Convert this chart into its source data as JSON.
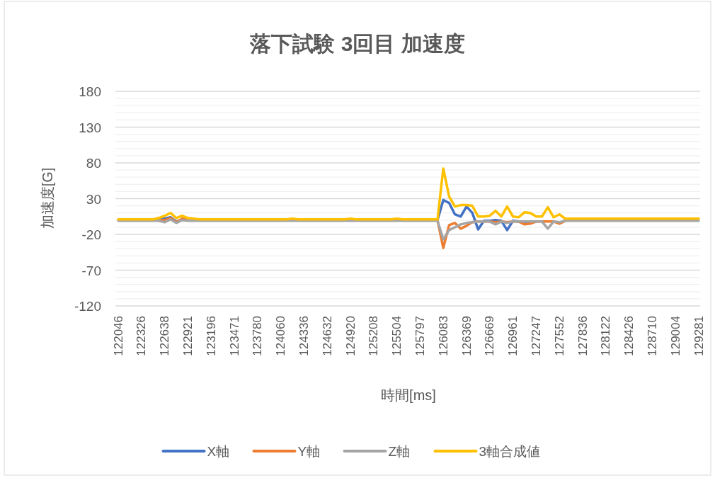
{
  "chart_data": {
    "type": "line",
    "title": "落下試験 3回目 加速度",
    "xlabel": "時間[ms]",
    "ylabel": "加速度[G]",
    "categories": [
      "122046",
      null,
      null,
      null,
      "122326",
      null,
      null,
      null,
      "122638",
      null,
      null,
      null,
      "122921",
      null,
      null,
      null,
      "123196",
      null,
      null,
      null,
      "123471",
      null,
      null,
      null,
      "123780",
      null,
      null,
      null,
      "124060",
      null,
      null,
      null,
      "124336",
      null,
      null,
      null,
      "124632",
      null,
      null,
      null,
      "124920",
      null,
      null,
      null,
      "125208",
      null,
      null,
      null,
      "125504",
      null,
      null,
      null,
      "125797",
      null,
      null,
      null,
      "126083",
      null,
      null,
      null,
      "126369",
      null,
      null,
      null,
      "126669",
      null,
      null,
      null,
      "126961",
      null,
      null,
      null,
      "127247",
      null,
      null,
      null,
      "127552",
      null,
      null,
      null,
      "127836",
      null,
      null,
      null,
      "128122",
      null,
      null,
      null,
      "128426",
      null,
      null,
      null,
      "128710",
      null,
      null,
      null,
      "129004",
      null,
      null,
      null,
      "129281"
    ],
    "ylim": [
      -120,
      180
    ],
    "yticks": [
      -120,
      {
        "value": -110,
        "label": null
      },
      {
        "value": -100,
        "label": null
      },
      {
        "value": -90,
        "label": null
      },
      {
        "value": -80,
        "label": null
      },
      -70,
      {
        "value": -60,
        "label": null
      },
      {
        "value": -50,
        "label": null
      },
      {
        "value": -40,
        "label": null
      },
      {
        "value": -30,
        "label": null
      },
      -20,
      {
        "value": -10,
        "label": null
      },
      {
        "value": 0,
        "label": null
      },
      {
        "value": 10,
        "label": null
      },
      {
        "value": 20,
        "label": null
      },
      30,
      {
        "value": 40,
        "label": null
      },
      {
        "value": 50,
        "label": null
      },
      {
        "value": 60,
        "label": null
      },
      {
        "value": 70,
        "label": null
      },
      80,
      {
        "value": 90,
        "label": null
      },
      {
        "value": 100,
        "label": null
      },
      {
        "value": 110,
        "label": null
      },
      {
        "value": 120,
        "label": null
      },
      130,
      {
        "value": 140,
        "label": null
      },
      {
        "value": 150,
        "label": null
      },
      {
        "value": 160,
        "label": null
      },
      {
        "value": 170,
        "label": null
      },
      180
    ],
    "grid": "y",
    "legend": "bottom",
    "series": [
      {
        "name": "X軸",
        "color": "#4472c4",
        "values": [
          null,
          null,
          null,
          null,
          null,
          null,
          null,
          0,
          2,
          4,
          -2,
          0,
          null,
          null,
          null,
          null,
          null,
          null,
          null,
          null,
          null,
          null,
          null,
          null,
          null,
          null,
          null,
          null,
          null,
          null,
          null,
          null,
          null,
          null,
          null,
          null,
          null,
          null,
          null,
          null,
          null,
          null,
          null,
          null,
          null,
          null,
          null,
          null,
          null,
          null,
          null,
          null,
          null,
          null,
          null,
          0,
          28,
          24,
          8,
          5,
          19,
          10,
          -13,
          -1,
          -1,
          0,
          -1,
          -14,
          -1,
          -2,
          -4,
          -2,
          null,
          null,
          null,
          null,
          null,
          null,
          null,
          null,
          null,
          null,
          null,
          null,
          null,
          null,
          null,
          null,
          null,
          null,
          null,
          null,
          null,
          null,
          null,
          null,
          null,
          null,
          null,
          null,
          null
        ]
      },
      {
        "name": "Y軸",
        "color": "#ed7d31",
        "values": [
          null,
          null,
          null,
          null,
          null,
          null,
          null,
          0,
          0,
          3,
          -3,
          2,
          0,
          null,
          null,
          null,
          null,
          null,
          null,
          null,
          null,
          null,
          null,
          null,
          null,
          null,
          null,
          null,
          null,
          null,
          null,
          null,
          null,
          null,
          null,
          null,
          null,
          null,
          null,
          null,
          null,
          null,
          null,
          null,
          null,
          null,
          null,
          null,
          null,
          null,
          null,
          null,
          null,
          null,
          null,
          0,
          -39,
          -7,
          -4,
          -12,
          -8,
          -3,
          -2,
          -2,
          -2,
          -3,
          -2,
          -3,
          -2,
          -2,
          -6,
          -5,
          -2,
          -2,
          -2,
          -2,
          -5,
          -1,
          null,
          null,
          null,
          null,
          null,
          null,
          null,
          null,
          null,
          null,
          null,
          null,
          null,
          null,
          null,
          null,
          null,
          null,
          null,
          null,
          null,
          null,
          null
        ]
      },
      {
        "name": "Z軸",
        "color": "#a5a5a5",
        "values": [
          -1,
          -1,
          -1,
          -1,
          -1,
          -1,
          -1,
          -1,
          -3,
          1,
          -4,
          0,
          -1,
          -1,
          -1,
          -1,
          -1,
          -1,
          -1,
          -1,
          -1,
          -1,
          -1,
          -1,
          -1,
          -1,
          -1,
          -1,
          -1,
          -1,
          -1,
          -1,
          -1,
          -1,
          -1,
          -1,
          -1,
          -1,
          -1,
          -1,
          -1,
          -1,
          -1,
          -1,
          -1,
          -1,
          -1,
          -1,
          -1,
          -1,
          -1,
          -1,
          -1,
          -1,
          -1,
          -1,
          -27,
          -14,
          -10,
          -6,
          -4,
          -3,
          -2,
          -2,
          -2,
          -6,
          -2,
          -4,
          -2,
          -2,
          -2,
          -2,
          -2,
          -2,
          -12,
          -2,
          -3,
          -1,
          -1,
          -1,
          -1,
          -1,
          -1,
          -1,
          -1,
          -1,
          -1,
          -1,
          -1,
          -1,
          -1,
          -1,
          -1,
          -1,
          -1,
          -1,
          -1,
          -1,
          -1,
          -1,
          -1
        ]
      },
      {
        "name": "3軸合成値",
        "color": "#ffc000",
        "values": [
          1,
          1,
          1,
          1,
          1,
          1,
          1,
          3,
          6,
          10,
          3,
          6,
          3,
          2,
          1,
          1,
          1,
          1,
          1,
          1,
          1,
          1,
          1,
          1,
          1,
          1,
          1,
          1,
          1,
          1,
          2,
          1,
          1,
          1,
          1,
          1,
          1,
          1,
          1,
          1,
          2,
          1,
          1,
          1,
          1,
          1,
          1,
          1,
          2,
          1,
          1,
          1,
          1,
          1,
          1,
          1,
          72,
          33,
          19,
          21,
          21,
          20,
          5,
          5,
          6,
          13,
          5,
          19,
          5,
          4,
          11,
          10,
          5,
          5,
          18,
          4,
          8,
          2,
          2,
          2,
          2,
          2,
          2,
          2,
          2,
          2,
          2,
          2,
          2,
          2,
          2,
          2,
          2,
          2,
          2,
          2,
          2,
          2,
          2,
          2,
          2
        ]
      }
    ]
  }
}
